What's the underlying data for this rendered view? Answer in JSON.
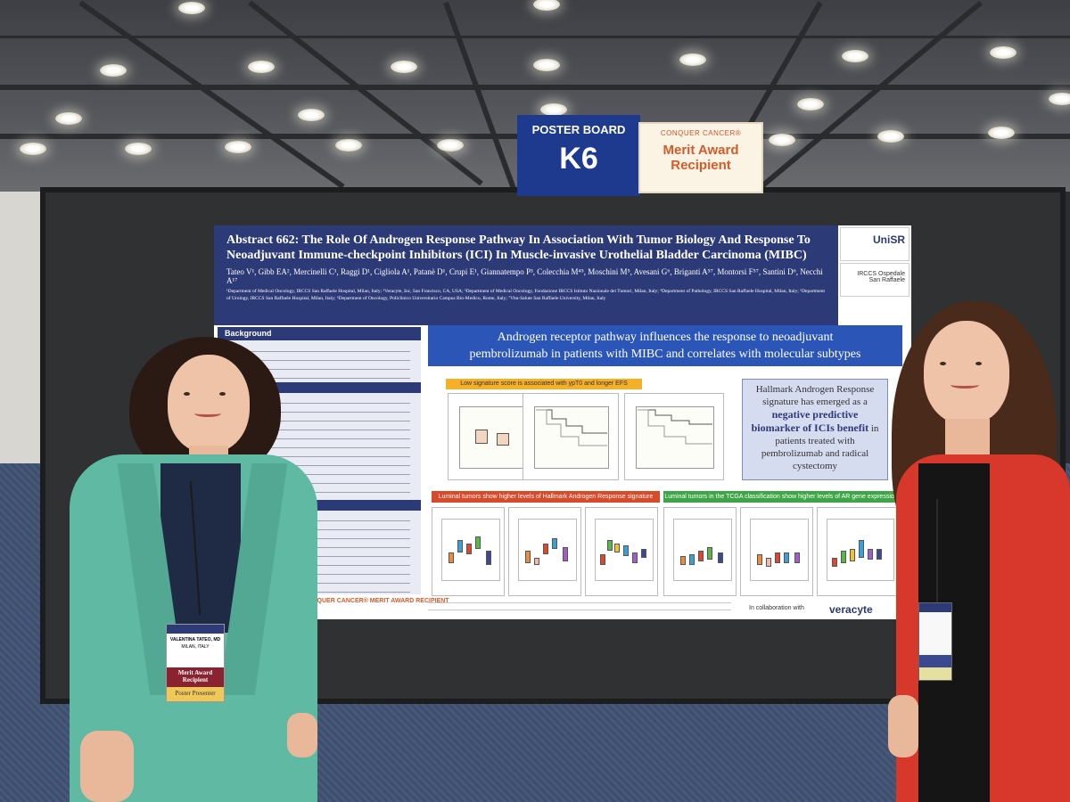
{
  "sign": {
    "board_label": "POSTER BOARD",
    "board_number": "K6",
    "org": "CONQUER CANCER®",
    "award": "Merit Award Recipient"
  },
  "poster": {
    "title": "Abstract 662: The Role Of Androgen Response Pathway In Association With Tumor Biology And Response To Neoadjuvant Immune-checkpoint Inhibitors (ICI) In Muscle-invasive Urothelial Bladder Carcinoma (MIBC)",
    "authors": "Tateo V¹, Gibb EA², Mercinelli C¹, Raggi D¹, Cigliola A¹, Patanè D¹, Crupi E¹, Giannatempo P³, Colecchia M⁴⁵, Moschini M⁵, Avesani G⁶, Briganti A⁵⁷, Montorsi F⁵⁷, Santini D⁶, Necchi A¹⁷",
    "affiliations": "¹Department of Medical Oncology, IRCCS San Raffaele Hospital, Milan, Italy; ²Veracyte, Inc, San Francisco, CA, USA; ³Department of Medical Oncology, Fondazione IRCCS Istituto Nazionale dei Tumori, Milan, Italy; ⁴Department of Pathology, IRCCS San Raffaele Hospital, Milan, Italy; ⁵Department of Urology, IRCCS San Raffaele Hospital, Milan, Italy; ⁶Department of Oncology, Policlinico Universitario Campus Bio-Medico, Rome, Italy; ⁷Vita-Salute San Raffaele University, Milan, Italy",
    "logo_top": "UniSR",
    "logo_bottom": "IRCCS Ospedale San Raffaele",
    "background_header": "Background",
    "banner_line1": "Androgen receptor pathway influences the response to neoadjuvant",
    "banner_line2": "pembrolizumab in patients with MIBC and correlates with molecular subtypes",
    "yellow_header": "Low signature score is associated with ypT0 and longer EFS",
    "callout_1": "Hallmark Androgen Response signature has emerged as a",
    "callout_2": "negative predictive biomarker of ICIs benefit",
    "callout_3": "in patients treated with pembrolizumab and radical cystectomy",
    "red_header": "Luminal tumors show higher levels of Hallmark Androgen Response signature",
    "green_header": "Luminal tumors in the TCGA classification show higher levels of AR gene expression",
    "collab": "In collaboration with",
    "veracyte": "veracyte",
    "conquer": "CONQUER CANCER® MERIT AWARD RECIPIENT"
  },
  "badge_left": {
    "name": "VALENTINA TATEO, MD",
    "city": "MILAN, ITALY",
    "ribbon1": "Merit Award Recipient",
    "ribbon2": "Poster Presenter"
  },
  "colors": {
    "poster_header": "#2d3a78",
    "banner": "#2b56b8",
    "sign_blue": "#1e3a8e",
    "left_jacket": "#5fb9a3",
    "right_jacket": "#d8372b"
  }
}
